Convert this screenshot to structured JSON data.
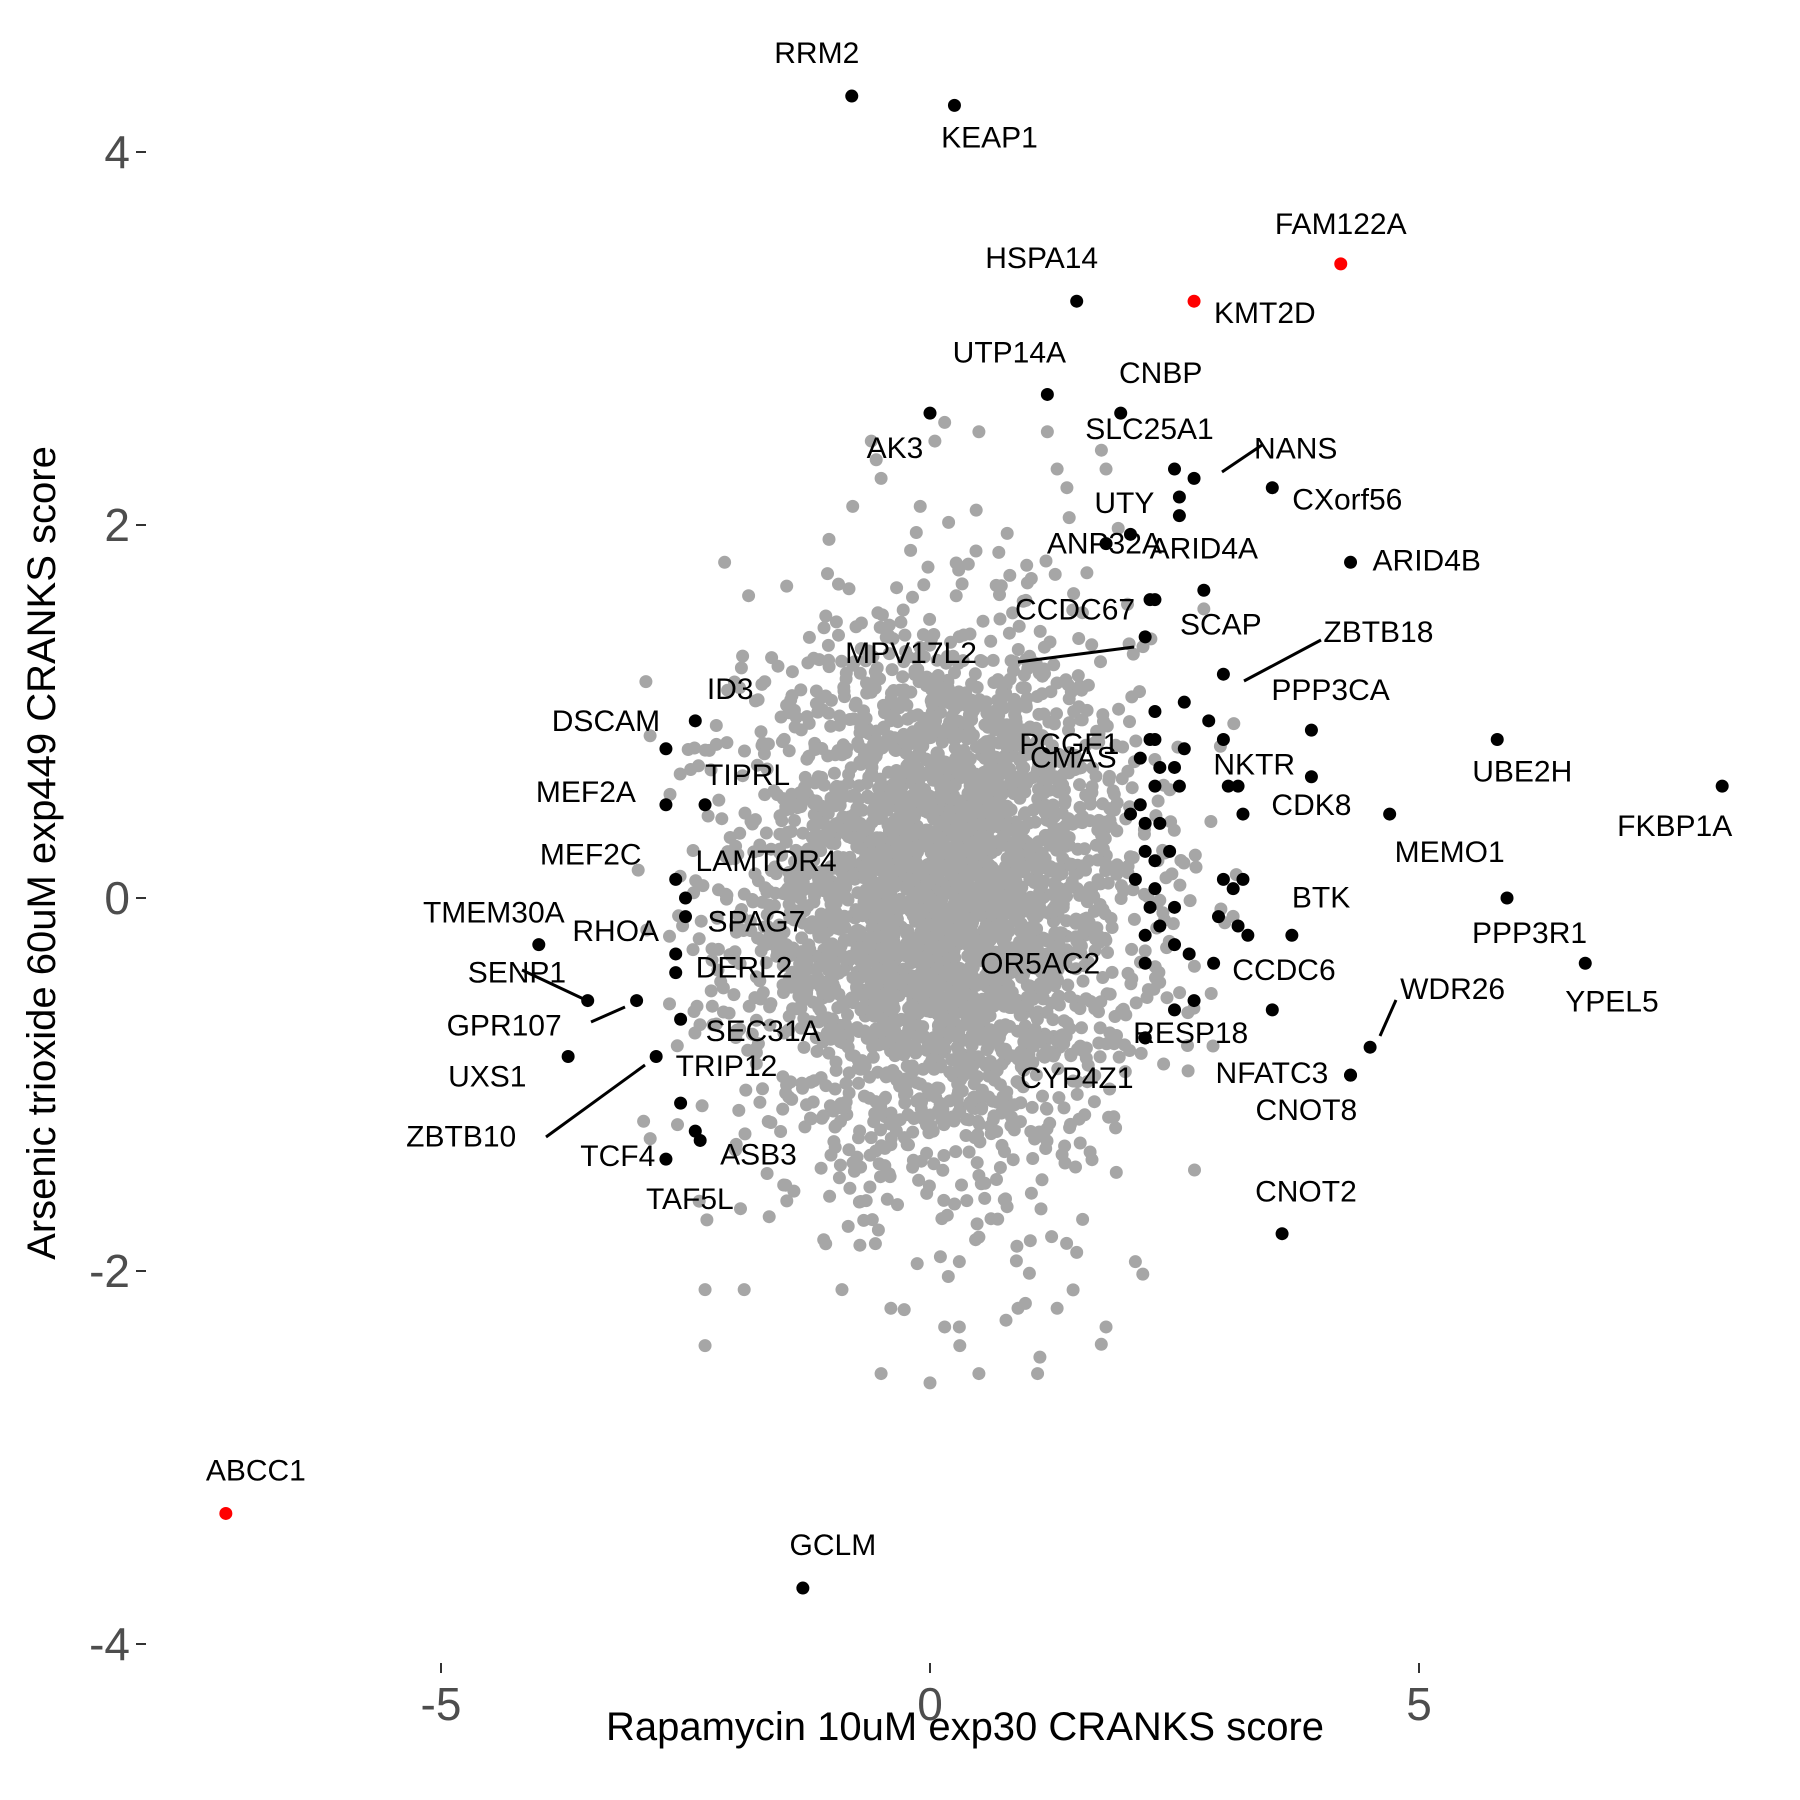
{
  "chart_data": {
    "type": "scatter",
    "xlabel": "Rapamycin 10uM exp30 CRANKS score",
    "ylabel": "Arsenic trioxide 60uM exp449 CRANKS score",
    "xlim": [
      -7.3,
      8.6
    ],
    "ylim": [
      -4.2,
      4.6
    ],
    "x_ticks": [
      -5,
      0,
      5
    ],
    "y_ticks": [
      -4,
      -2,
      0,
      2,
      4
    ],
    "x_tick_labels": [
      "-5",
      "0",
      "5"
    ],
    "y_tick_labels": [
      "-4",
      "-2",
      "0",
      "2",
      "4"
    ],
    "grid": false,
    "colors": {
      "background": "#404040",
      "highlight": "#ff0000",
      "labeled": "#000000",
      "tick_text": "#4d4d4d"
    },
    "background_points": {
      "description_count": 6000,
      "center": [
        0.1,
        0.0
      ],
      "sd": [
        1.0,
        0.5
      ],
      "notable": [
        [
          -0.1,
          2.1
        ],
        [
          -0.5,
          2.25
        ],
        [
          -0.55,
          2.35
        ],
        [
          -0.6,
          2.45
        ],
        [
          0.05,
          2.45
        ],
        [
          0.15,
          2.55
        ],
        [
          0.5,
          2.5
        ],
        [
          1.2,
          2.5
        ],
        [
          1.8,
          2.3
        ],
        [
          1.3,
          2.3
        ],
        [
          1.4,
          2.2
        ],
        [
          -2.1,
          1.8
        ],
        [
          2.8,
          1.55
        ],
        [
          -0.9,
          -2.1
        ],
        [
          -0.4,
          -2.2
        ],
        [
          0.15,
          -2.3
        ],
        [
          0.3,
          -2.3
        ],
        [
          0.9,
          -2.2
        ],
        [
          1.3,
          -2.2
        ],
        [
          1.8,
          -2.3
        ],
        [
          -0.5,
          -2.55
        ],
        [
          0.0,
          -2.6
        ],
        [
          0.5,
          -2.55
        ],
        [
          1.1,
          -2.55
        ],
        [
          -1.9,
          -2.1
        ],
        [
          -2.3,
          -2.1
        ],
        [
          -2.3,
          -2.4
        ],
        [
          0.3,
          -1.95
        ],
        [
          1.5,
          -1.9
        ],
        [
          2.1,
          -1.95
        ]
      ]
    },
    "series": [
      {
        "name": "highlighted",
        "color": "#ff0000",
        "points": [
          {
            "label": "FAM122A",
            "x": 4.2,
            "y": 3.4
          },
          {
            "label": "KMT2D",
            "x": 2.7,
            "y": 3.2
          },
          {
            "label": "ABCC1",
            "x": -7.2,
            "y": -3.3
          }
        ]
      },
      {
        "name": "labeled",
        "color": "#000000",
        "points": [
          {
            "label": "RRM2",
            "x": -0.8,
            "y": 4.3
          },
          {
            "label": "KEAP1",
            "x": 0.25,
            "y": 4.25
          },
          {
            "label": "HSPA14",
            "x": 1.5,
            "y": 3.2
          },
          {
            "label": "UTP14A",
            "x": 1.2,
            "y": 2.7
          },
          {
            "label": "CNBP",
            "x": 1.95,
            "y": 2.6
          },
          {
            "label": "AK3",
            "x": 0.0,
            "y": 2.6
          },
          {
            "label": "SLC25A1",
            "x": 2.5,
            "y": 2.3
          },
          {
            "label": "NANS",
            "x": 2.7,
            "y": 2.25
          },
          {
            "label": "CXorf56",
            "x": 3.5,
            "y": 2.2
          },
          {
            "label": "UTY",
            "x": 2.55,
            "y": 2.15
          },
          {
            "label": "ANP32A",
            "x": 2.55,
            "y": 2.05
          },
          {
            "label": "ARID4A",
            "x": 2.8,
            "y": 1.65
          },
          {
            "label": "ARID4B",
            "x": 4.3,
            "y": 1.8
          },
          {
            "label": "CCDC67",
            "x": 2.25,
            "y": 1.6
          },
          {
            "label": "SCAP",
            "x": 2.3,
            "y": 1.6
          },
          {
            "label": "MPV17L2",
            "x": 2.2,
            "y": 1.4
          },
          {
            "label": "ZBTB18",
            "x": 3.0,
            "y": 1.2
          },
          {
            "label": "PCGF1",
            "x": 2.6,
            "y": 1.05
          },
          {
            "label": "PPP3CA",
            "x": 3.9,
            "y": 0.9
          },
          {
            "label": "CMAS",
            "x": 2.3,
            "y": 0.85
          },
          {
            "label": "NKTR",
            "x": 3.0,
            "y": 0.85
          },
          {
            "label": "UBE2H",
            "x": 5.8,
            "y": 0.85
          },
          {
            "label": "FKBP1A",
            "x": 8.1,
            "y": 0.6
          },
          {
            "label": "CDK8",
            "x": 3.9,
            "y": 0.65
          },
          {
            "label": "MEMO1",
            "x": 4.7,
            "y": 0.45
          },
          {
            "label": "ID3",
            "x": -2.4,
            "y": 0.95
          },
          {
            "label": "DSCAM",
            "x": -2.7,
            "y": 0.8
          },
          {
            "label": "MEF2A",
            "x": -2.7,
            "y": 0.5
          },
          {
            "label": "TIPRL",
            "x": -2.3,
            "y": 0.5
          },
          {
            "label": "MEF2C",
            "x": -2.6,
            "y": 0.1
          },
          {
            "label": "LAMTOR4",
            "x": -2.5,
            "y": 0.0
          },
          {
            "label": "SPAG7",
            "x": -2.5,
            "y": -0.1
          },
          {
            "label": "TMEM30A",
            "x": -4.0,
            "y": -0.25
          },
          {
            "label": "RHOA",
            "x": -2.6,
            "y": -0.3
          },
          {
            "label": "DERL2",
            "x": -2.6,
            "y": -0.4
          },
          {
            "label": "SENP1",
            "x": -3.5,
            "y": -0.55
          },
          {
            "label": "GPR107",
            "x": -3.0,
            "y": -0.55
          },
          {
            "label": "SEC31A",
            "x": -2.55,
            "y": -0.65
          },
          {
            "label": "UXS1",
            "x": -3.7,
            "y": -0.85
          },
          {
            "label": "ZBTB10",
            "x": -2.8,
            "y": -0.85
          },
          {
            "label": "TRIP12",
            "x": -2.55,
            "y": -1.1
          },
          {
            "label": "TCF4",
            "x": -2.4,
            "y": -1.25
          },
          {
            "label": "ASB3",
            "x": -2.35,
            "y": -1.3
          },
          {
            "label": "TAF5L",
            "x": -2.7,
            "y": -1.4
          },
          {
            "label": "PPP3R1",
            "x": 5.9,
            "y": 0.0
          },
          {
            "label": "YPEL5",
            "x": 6.7,
            "y": -0.35
          },
          {
            "label": "BTK",
            "x": 3.7,
            "y": -0.2
          },
          {
            "label": "CCDC6",
            "x": 3.5,
            "y": -0.6
          },
          {
            "label": "OR5AC2",
            "x": 2.2,
            "y": -0.35
          },
          {
            "label": "WDR26",
            "x": 4.5,
            "y": -0.8
          },
          {
            "label": "RESP18",
            "x": 2.2,
            "y": -0.75
          },
          {
            "label": "NFATC3",
            "x": 4.3,
            "y": -0.95
          },
          {
            "label": "CNOT8",
            "x": 4.3,
            "y": -0.95
          },
          {
            "label": "CYP4Z1",
            "x": 2.2,
            "y": -0.75
          },
          {
            "label": "CNOT2",
            "x": 3.6,
            "y": -1.8
          },
          {
            "label": "GCLM",
            "x": -1.3,
            "y": -3.7
          }
        ]
      },
      {
        "name": "unlabeled-black",
        "color": "#000000",
        "points": [
          {
            "x": 2.3,
            "y": 1.0
          },
          {
            "x": 2.25,
            "y": 0.85
          },
          {
            "x": 2.15,
            "y": 0.75
          },
          {
            "x": 2.35,
            "y": 0.7
          },
          {
            "x": 2.5,
            "y": 0.7
          },
          {
            "x": 2.55,
            "y": 0.6
          },
          {
            "x": 2.3,
            "y": 0.6
          },
          {
            "x": 2.15,
            "y": 0.5
          },
          {
            "x": 2.05,
            "y": 0.45
          },
          {
            "x": 2.2,
            "y": 0.4
          },
          {
            "x": 2.35,
            "y": 0.4
          },
          {
            "x": 2.2,
            "y": 0.25
          },
          {
            "x": 2.45,
            "y": 0.25
          },
          {
            "x": 2.3,
            "y": 0.2
          },
          {
            "x": 2.1,
            "y": 0.1
          },
          {
            "x": 2.3,
            "y": 0.05
          },
          {
            "x": 2.25,
            "y": -0.05
          },
          {
            "x": 2.5,
            "y": -0.05
          },
          {
            "x": 2.35,
            "y": -0.15
          },
          {
            "x": 2.2,
            "y": -0.2
          },
          {
            "x": 2.5,
            "y": -0.25
          },
          {
            "x": 2.65,
            "y": -0.3
          },
          {
            "x": 2.9,
            "y": -0.35
          },
          {
            "x": 2.95,
            "y": -0.1
          },
          {
            "x": 3.15,
            "y": -0.15
          },
          {
            "x": 3.0,
            "y": 0.1
          },
          {
            "x": 3.1,
            "y": 0.05
          },
          {
            "x": 3.25,
            "y": -0.2
          },
          {
            "x": 3.15,
            "y": 0.6
          },
          {
            "x": 3.2,
            "y": 0.45
          },
          {
            "x": 3.05,
            "y": 0.6
          },
          {
            "x": 2.85,
            "y": 0.95
          },
          {
            "x": 2.6,
            "y": 0.8
          },
          {
            "x": 2.7,
            "y": -0.55
          },
          {
            "x": 2.5,
            "y": -0.6
          },
          {
            "x": 3.2,
            "y": 0.1
          },
          {
            "x": 1.8,
            "y": 1.9
          },
          {
            "x": 2.05,
            "y": 1.95
          }
        ]
      }
    ]
  }
}
